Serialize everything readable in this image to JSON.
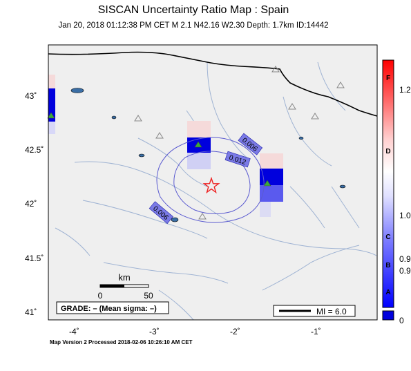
{
  "header": {
    "title": "SISCAN Uncertainty Ratio Map : Spain",
    "subtitle": "Jan 20, 2018 01:12:38 PM CET   M 2.1   N42.16 W2.30   Depth: 1.7km   ID:14442"
  },
  "map": {
    "lat_ticks": [
      {
        "label": "43˚",
        "value": 43
      },
      {
        "label": "42.5˚",
        "value": 42.5
      },
      {
        "label": "42˚",
        "value": 42
      },
      {
        "label": "41.5˚",
        "value": 41.5
      },
      {
        "label": "41˚",
        "value": 41
      }
    ],
    "lon_ticks": [
      {
        "label": "-4˚",
        "value": -4
      },
      {
        "label": "-3˚",
        "value": -3
      },
      {
        "label": "-2˚",
        "value": -2
      },
      {
        "label": "-1˚",
        "value": -1
      }
    ],
    "contours": [
      {
        "label": "0.006",
        "value": 0.006
      },
      {
        "label": "0.012",
        "value": 0.012
      }
    ],
    "scale_bar": {
      "unit": "km",
      "start": "0",
      "end": "50"
    },
    "grade_box": "GRADE: – (Mean sigma: –)",
    "legend": "MI = 6.0",
    "epicenter": {
      "lat": 42.16,
      "lon": -2.3
    }
  },
  "colorbar": {
    "letters": [
      "F",
      "D",
      "C",
      "B",
      "A"
    ],
    "values": [
      "1.2",
      "1.0",
      "0.9",
      "0.9",
      "0"
    ]
  },
  "footer": "Map Version 2 Processed 2018-02-06 10:26:10 AM CET",
  "colors": {
    "map_background": "#efefef",
    "border": "#000000",
    "rivers": "#9fb3d3",
    "contour": "#5a5ad0",
    "station_high": "#0000ee",
    "epicenter": "#ee2222"
  }
}
